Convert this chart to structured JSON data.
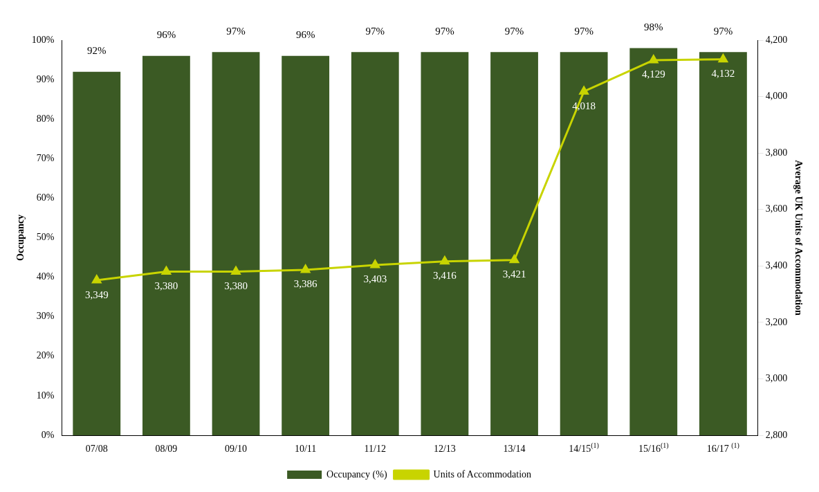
{
  "chart_data": {
    "type": "bar",
    "ylabel": "Occupancy",
    "y2label": "Average UK Units of Accommodation",
    "categories": [
      "07/08",
      "08/09",
      "09/10",
      "10/11",
      "11/12",
      "12/13",
      "13/14",
      "14/15$^{(1)}$",
      "15/16$^{(1)}$",
      "16/17 $^{(1)}$"
    ],
    "series": [
      {
        "name": "Occupancy (%)",
        "color": "#3b5a24",
        "values": [
          92,
          96,
          97,
          96,
          97,
          97,
          97,
          97,
          98,
          97
        ],
        "value_labels": [
          "92%",
          "96%",
          "97%",
          "96%",
          "97%",
          "97%",
          "97%",
          "97%",
          "98%",
          "97%"
        ]
      },
      {
        "name": "Units of Accommodation",
        "type": "line",
        "axis": "y2",
        "color": "#c8d400",
        "marker": "triangle",
        "values": [
          3349,
          3380,
          3380,
          3386,
          3403,
          3416,
          3421,
          4018,
          4129,
          4132
        ],
        "value_labels": [
          "3,349",
          "3,380",
          "3,380",
          "3,386",
          "3,403",
          "3,416",
          "3,421",
          "4,018",
          "4,129",
          "4,132"
        ]
      }
    ],
    "ylim": [
      0,
      100
    ],
    "yticks": [
      {
        "value": 0,
        "label": "0%"
      },
      {
        "value": 10,
        "label": "10%"
      },
      {
        "value": 20,
        "label": "20%"
      },
      {
        "value": 30,
        "label": "30%"
      },
      {
        "value": 40,
        "label": "40%"
      },
      {
        "value": 50,
        "label": "50%"
      },
      {
        "value": 60,
        "label": "60%"
      },
      {
        "value": 70,
        "label": "70%"
      },
      {
        "value": 80,
        "label": "80%"
      },
      {
        "value": 90,
        "label": "90%"
      },
      {
        "value": 100,
        "label": "100%"
      }
    ],
    "y2lim": [
      2800,
      4200
    ],
    "y2ticks": [
      {
        "value": 2800,
        "label": "2,800"
      },
      {
        "value": 3000,
        "label": "3,000"
      },
      {
        "value": 3200,
        "label": "3,200"
      },
      {
        "value": 3400,
        "label": "3,400"
      },
      {
        "value": 3600,
        "label": "3,600"
      },
      {
        "value": 3800,
        "label": "3,800"
      },
      {
        "value": 4000,
        "label": "4,000"
      },
      {
        "value": 4200,
        "label": "4,200"
      }
    ],
    "legend": "bottom",
    "grid": false
  }
}
